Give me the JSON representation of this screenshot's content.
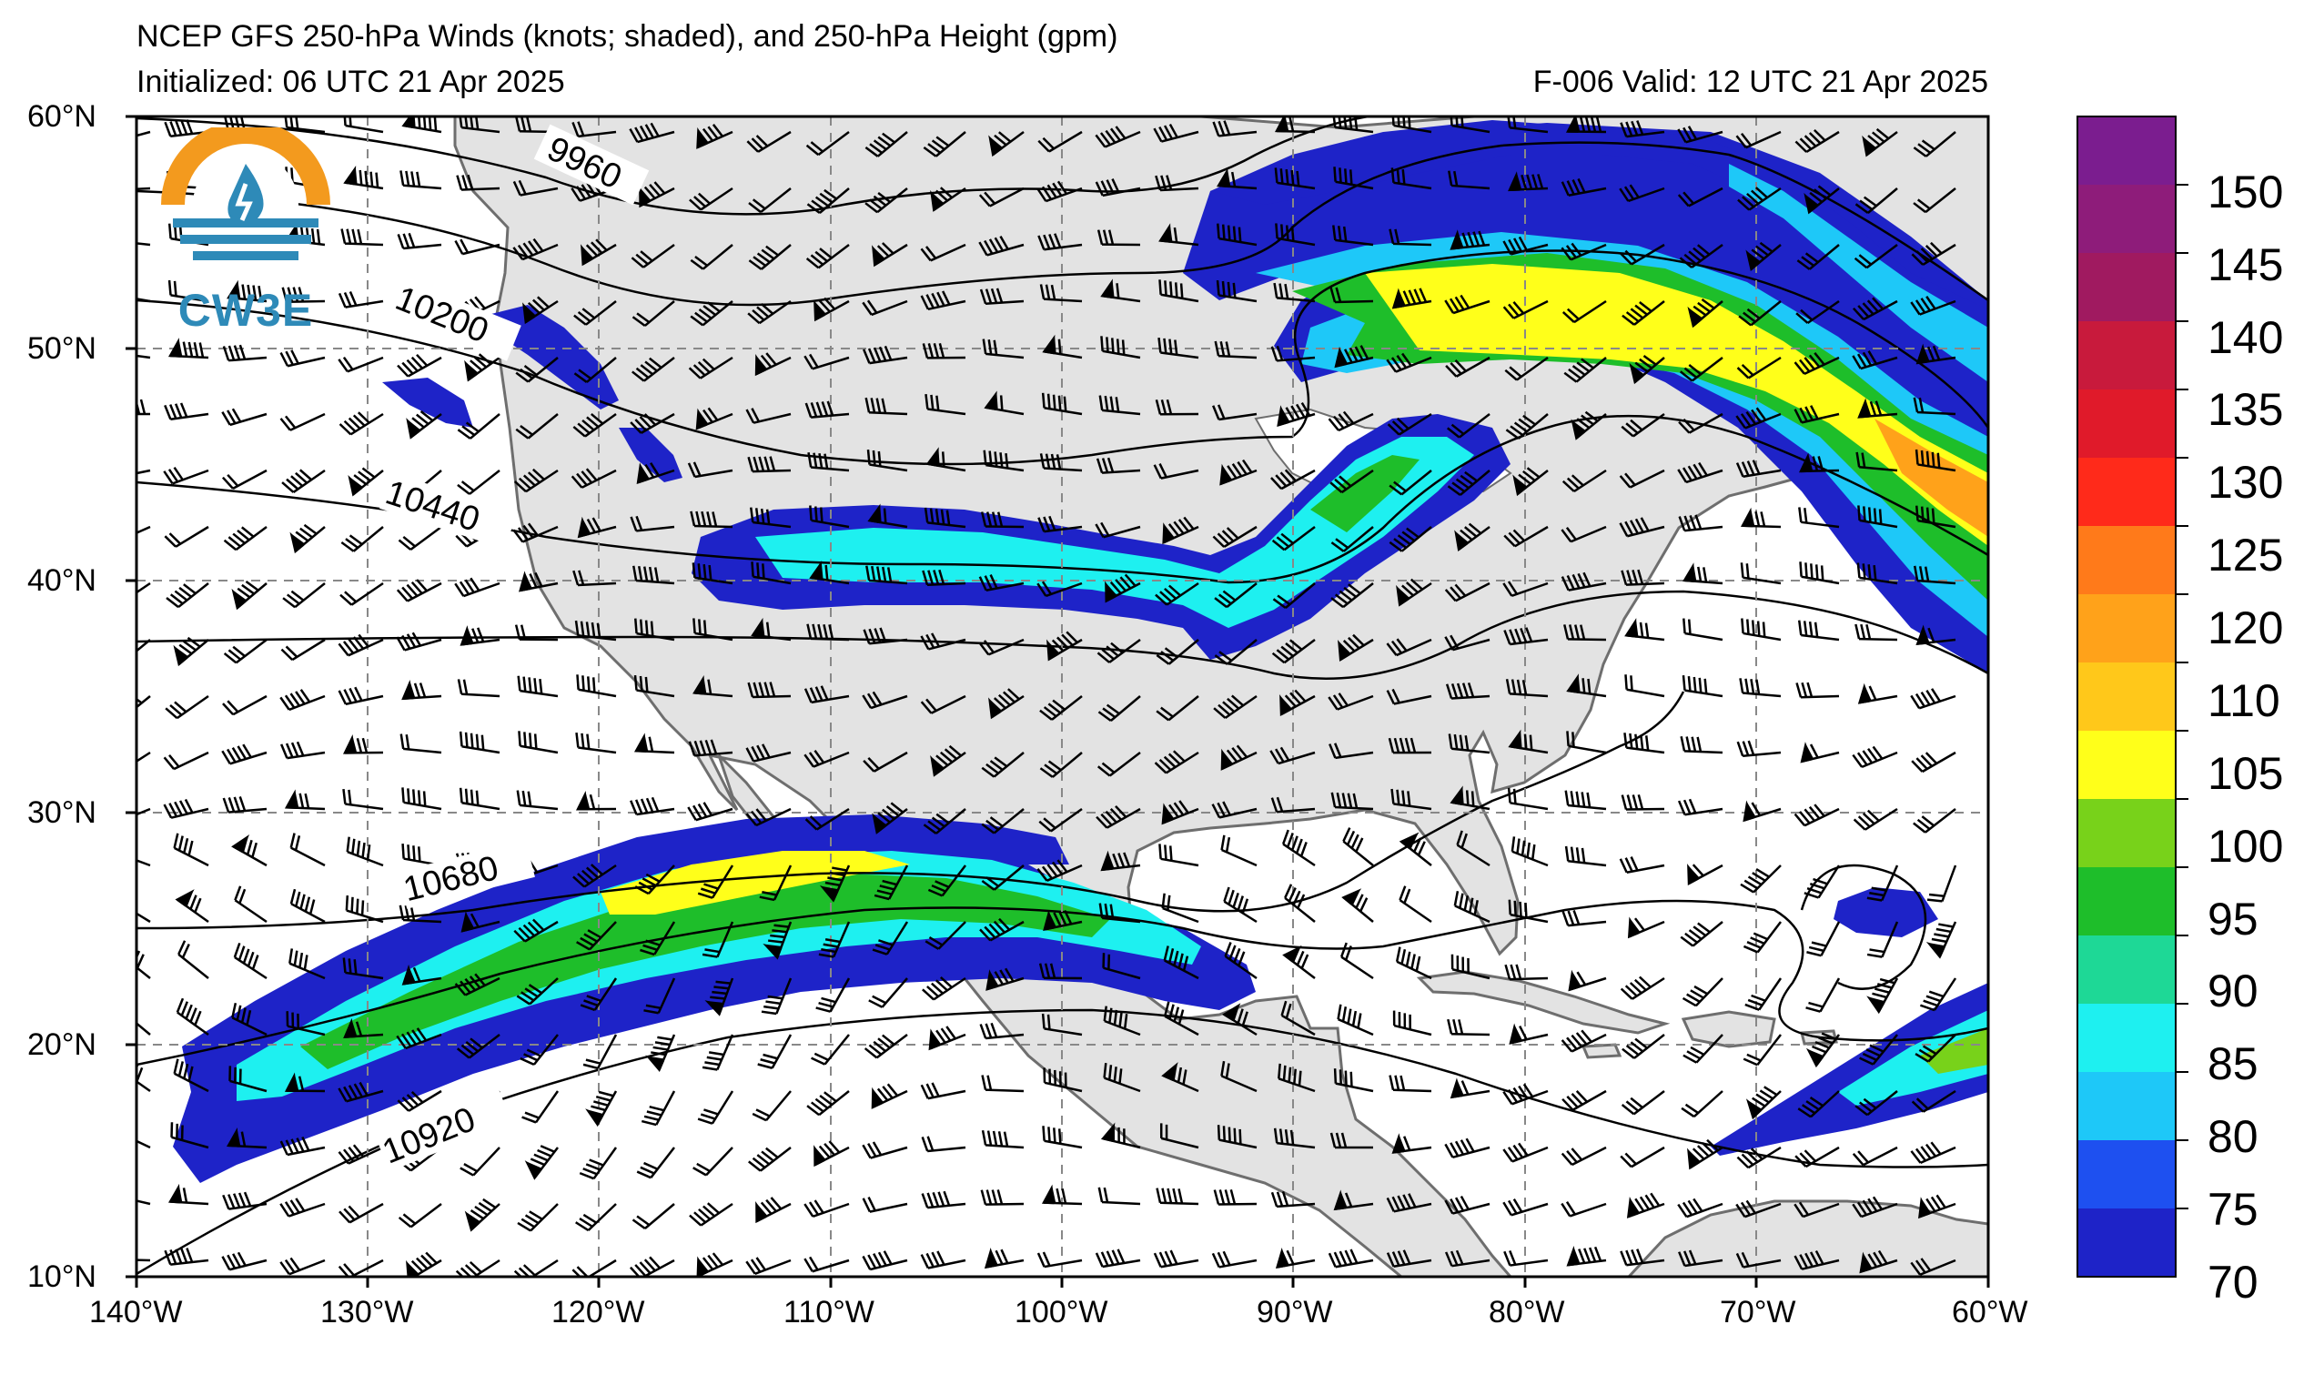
{
  "header": {
    "title": "NCEP GFS 250-hPa Winds (knots; shaded), and 250-hPa Height (gpm)",
    "initialized": "Initialized: 06 UTC 21 Apr 2025",
    "valid": "F-006  Valid: 12 UTC 21 Apr 2025"
  },
  "logo": {
    "text": "CW3E",
    "icon": "cw3e-logo-icon"
  },
  "map": {
    "lat_labels": [
      "60°N",
      "50°N",
      "40°N",
      "30°N",
      "20°N",
      "10°N"
    ],
    "lon_labels": [
      "140°W",
      "130°W",
      "120°W",
      "110°W",
      "100°W",
      "90°W",
      "80°W",
      "70°W",
      "60°W"
    ],
    "extent": {
      "lon_min": -140,
      "lon_max": -60,
      "lat_min": 10,
      "lat_max": 60
    },
    "contour_labels": [
      "9960",
      "10200",
      "10440",
      "10680",
      "10920"
    ],
    "land_color": "#e3e3e3",
    "ocean_color": "#ffffff"
  },
  "colorbar": {
    "labels": [
      "150",
      "145",
      "140",
      "135",
      "130",
      "125",
      "120",
      "110",
      "105",
      "100",
      "95",
      "90",
      "85",
      "80",
      "75",
      "70"
    ],
    "colors": [
      "#7b1d8f",
      "#8e1c7a",
      "#a01a60",
      "#c81a3c",
      "#e01a2a",
      "#ff2a1a",
      "#ff7a1a",
      "#ffa21a",
      "#ffc81a",
      "#ffff1a",
      "#78d21a",
      "#1ebe2a",
      "#1ed896",
      "#1ef0f0",
      "#1ec8f8",
      "#1e50f0",
      "#1e23c8"
    ]
  }
}
